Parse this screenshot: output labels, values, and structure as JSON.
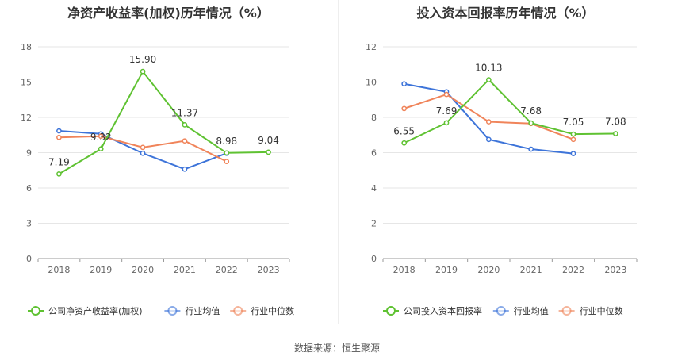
{
  "footer": {
    "label": "数据来源：",
    "source": "恒生聚源"
  },
  "chart_data": [
    {
      "type": "line",
      "title": "净资产收益率(加权)历年情况（%）",
      "categories": [
        "2018",
        "2019",
        "2020",
        "2021",
        "2022",
        "2023"
      ],
      "ylim": [
        0,
        18
      ],
      "yticks": [
        0,
        3,
        6,
        9,
        12,
        15,
        18
      ],
      "grid": true,
      "legend_position": "bottom",
      "series": [
        {
          "name": "公司净资产收益率(加权)",
          "color": "#5fc232",
          "values": [
            7.19,
            9.32,
            15.9,
            11.37,
            8.98,
            9.04
          ],
          "labels": [
            "7.19",
            "9.32",
            "15.90",
            "11.37",
            "8.98",
            "9.04"
          ]
        },
        {
          "name": "行业均值",
          "color": "#3d74d9",
          "values": [
            10.85,
            10.6,
            8.95,
            7.6,
            8.95,
            null
          ]
        },
        {
          "name": "行业中位数",
          "color": "#f0845a",
          "values": [
            10.3,
            10.4,
            9.45,
            10.0,
            8.25,
            null
          ]
        }
      ]
    },
    {
      "type": "line",
      "title": "投入资本回报率历年情况（%）",
      "categories": [
        "2018",
        "2019",
        "2020",
        "2021",
        "2022",
        "2023"
      ],
      "ylim": [
        0,
        12
      ],
      "yticks": [
        0,
        2,
        4,
        6,
        8,
        10,
        12
      ],
      "grid": true,
      "legend_position": "bottom",
      "series": [
        {
          "name": "公司投入资本回报率",
          "color": "#5fc232",
          "values": [
            6.55,
            7.69,
            10.13,
            7.68,
            7.05,
            7.08
          ],
          "labels": [
            "6.55",
            "7.69",
            "10.13",
            "7.68",
            "7.05",
            "7.08"
          ]
        },
        {
          "name": "行业均值",
          "color": "#3d74d9",
          "values": [
            9.9,
            9.45,
            6.75,
            6.2,
            5.95,
            null
          ]
        },
        {
          "name": "行业中位数",
          "color": "#f0845a",
          "values": [
            8.5,
            9.3,
            7.75,
            7.65,
            6.75,
            null
          ]
        }
      ]
    }
  ]
}
